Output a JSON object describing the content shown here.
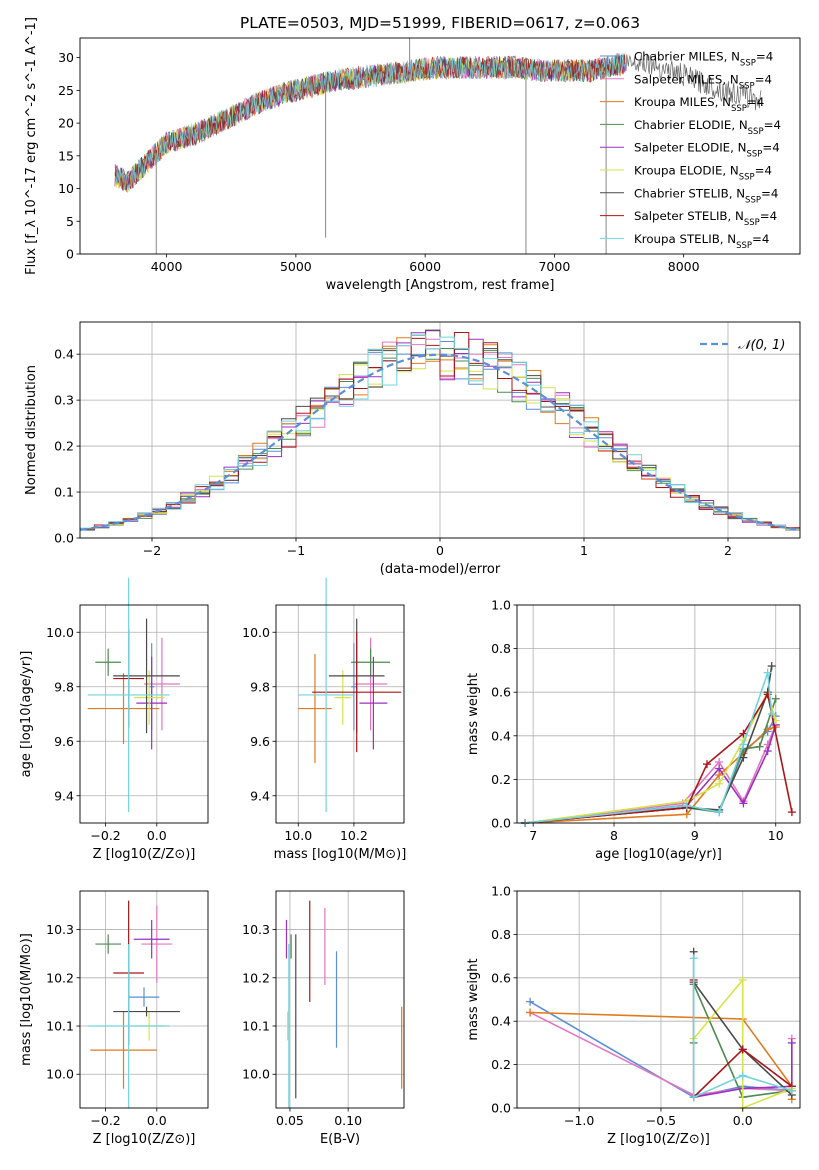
{
  "figure": {
    "title": "PLATE=0503, MJD=51999, FIBERID=0617, z=0.063"
  },
  "colors": {
    "Chabrier MILES": "#5B8FD6",
    "Salpeter MILES": "#E377C2",
    "Kroupa MILES": "#E07A1F",
    "Chabrier ELODIE": "#4E8A50",
    "Salpeter ELODIE": "#9A30C0",
    "Kroupa ELODIE": "#D7E348",
    "Chabrier STELIB": "#4A4A4A",
    "Salpeter STELIB": "#A8161A",
    "Kroupa STELIB": "#72D3DE",
    "model_order": [
      "Chabrier MILES",
      "Salpeter MILES",
      "Kroupa MILES",
      "Chabrier ELODIE",
      "Salpeter ELODIE",
      "Kroupa ELODIE",
      "Chabrier STELIB",
      "Salpeter STELIB",
      "Kroupa STELIB"
    ]
  },
  "chart_data": [
    {
      "id": "spectrum",
      "type": "line",
      "title": "PLATE=0503, MJD=51999, FIBERID=0617, z=0.063",
      "xlabel": "wavelength [Angstrom, rest frame]",
      "ylabel": "Flux [f_λ 10^-17 erg cm^-2 s^-1 A^-1]",
      "xlim": [
        3330,
        8900
      ],
      "ylim": [
        0,
        33
      ],
      "xticks": [
        4000,
        5000,
        6000,
        7000,
        8000
      ],
      "yticks": [
        0,
        5,
        10,
        15,
        20,
        25,
        30
      ],
      "grid": false,
      "legend": {
        "position": "right",
        "entries": [
          {
            "name": "Chabrier MILES",
            "suffix": "=4"
          },
          {
            "name": "Salpeter MILES",
            "suffix": "=4"
          },
          {
            "name": "Kroupa MILES",
            "suffix": "=4"
          },
          {
            "name": "Chabrier ELODIE",
            "suffix": "=4"
          },
          {
            "name": "Salpeter ELODIE",
            "suffix": "=4"
          },
          {
            "name": "Kroupa ELODIE",
            "suffix": "=4"
          },
          {
            "name": "Chabrier STELIB",
            "suffix": "=4"
          },
          {
            "name": "Salpeter STELIB",
            "suffix": "=4"
          },
          {
            "name": "Kroupa STELIB",
            "suffix": "=4"
          }
        ]
      },
      "data_continuum": {
        "x": [
          3600,
          3700,
          3800,
          3900,
          4000,
          4100,
          4300,
          4500,
          4700,
          4900,
          5100,
          5300,
          5500,
          5700,
          5900,
          6100,
          6300,
          6500,
          6700,
          6900,
          7100,
          7300,
          7500,
          7700,
          7900,
          8100,
          8300,
          8500,
          8600
        ],
        "y": [
          12,
          11,
          13,
          15,
          17,
          17.5,
          19,
          21,
          23,
          24.5,
          25.5,
          26.5,
          27,
          27.5,
          28,
          28.5,
          28.5,
          28.5,
          28.5,
          28,
          28,
          28,
          29,
          29.5,
          28,
          26.5,
          25,
          24,
          23.5
        ]
      },
      "data_spikes": [
        {
          "x": 3920,
          "y": 0
        },
        {
          "x": 5230,
          "y": 2.5
        },
        {
          "x": 5880,
          "y": 33
        },
        {
          "x": 6780,
          "y": 0
        },
        {
          "x": 7400,
          "y": 0
        }
      ]
    },
    {
      "id": "residual-histogram",
      "type": "histogram",
      "xlabel": "(data-model)/error",
      "ylabel": "Normed distribution",
      "xlim": [
        -2.5,
        2.5
      ],
      "ylim": [
        0,
        0.47
      ],
      "xticks": [
        -2,
        -1,
        0,
        1,
        2
      ],
      "yticks": [
        0.0,
        0.1,
        0.2,
        0.3,
        0.4
      ],
      "grid": true,
      "legend": {
        "position": "top-right",
        "entries": [
          {
            "name": "𝒩(0, 1)"
          }
        ]
      },
      "reference_curve": {
        "name": "𝒩(0, 1)",
        "mean": 0,
        "sigma": 1
      },
      "bins": [
        -2.5,
        -2.4,
        -2.3,
        -2.2,
        -2.1,
        -2.0,
        -1.9,
        -1.8,
        -1.7,
        -1.6,
        -1.5,
        -1.4,
        -1.3,
        -1.2,
        -1.1,
        -1.0,
        -0.9,
        -0.8,
        -0.7,
        -0.6,
        -0.5,
        -0.4,
        -0.3,
        -0.2,
        -0.1,
        0.0,
        0.1,
        0.2,
        0.3,
        0.4,
        0.5,
        0.6,
        0.7,
        0.8,
        0.9,
        1.0,
        1.1,
        1.2,
        1.3,
        1.4,
        1.5,
        1.6,
        1.7,
        1.8,
        1.9,
        2.0,
        2.1,
        2.2,
        2.3,
        2.4,
        2.5
      ]
    },
    {
      "id": "age-vs-metallicity",
      "type": "scatter",
      "xlabel": "Z [log10(Z/Z⊙)]",
      "ylabel": "age [log10(age/yr)]",
      "xlim": [
        -0.3,
        0.2
      ],
      "ylim": [
        9.3,
        10.1
      ],
      "xticks": [
        -0.2,
        0.0
      ],
      "yticks": [
        9.4,
        9.6,
        9.8,
        10.0
      ],
      "grid": true,
      "points": [
        {
          "model": "Chabrier MILES",
          "x": -0.02,
          "y": 9.8,
          "xerr": 0.01,
          "yerr": 0.16
        },
        {
          "model": "Salpeter MILES",
          "x": 0.02,
          "y": 9.81,
          "xerr": 0.07,
          "yerr": 0.17
        },
        {
          "model": "Kroupa MILES",
          "x": -0.13,
          "y": 9.72,
          "xerr": 0.14,
          "yerr": 0.13
        },
        {
          "model": "Chabrier ELODIE",
          "x": -0.19,
          "y": 9.89,
          "xerr": 0.05,
          "yerr": 0.05
        },
        {
          "model": "Salpeter ELODIE",
          "x": -0.02,
          "y": 9.74,
          "xerr": 0.06,
          "yerr": 0.17
        },
        {
          "model": "Kroupa ELODIE",
          "x": -0.03,
          "y": 9.76,
          "xerr": 0.06,
          "yerr": 0.1
        },
        {
          "model": "Chabrier STELIB",
          "x": -0.04,
          "y": 9.84,
          "xerr": 0.13,
          "yerr": 0.21
        },
        {
          "model": "Salpeter STELIB",
          "x": -0.11,
          "y": 9.83,
          "xerr": 0.06,
          "yerr": 0.18
        },
        {
          "model": "Kroupa STELIB",
          "x": -0.11,
          "y": 9.77,
          "xerr": 0.16,
          "yerr": 0.43
        }
      ]
    },
    {
      "id": "age-vs-mass",
      "type": "scatter",
      "xlabel": "mass [log10(M/M⊙)]",
      "ylabel": "",
      "xlim": [
        9.92,
        10.38
      ],
      "ylim": [
        9.3,
        10.1
      ],
      "xticks": [
        10.0,
        10.2
      ],
      "yticks": [
        9.4,
        9.6,
        9.8,
        10.0
      ],
      "grid": true,
      "points": [
        {
          "model": "Chabrier MILES",
          "x": 10.2,
          "y": 9.8,
          "xerr": 0.01,
          "yerr": 0.16
        },
        {
          "model": "Salpeter MILES",
          "x": 10.26,
          "y": 9.81,
          "xerr": 0.06,
          "yerr": 0.17
        },
        {
          "model": "Kroupa MILES",
          "x": 10.06,
          "y": 9.72,
          "xerr": 0.06,
          "yerr": 0.2
        },
        {
          "model": "Chabrier ELODIE",
          "x": 10.26,
          "y": 9.89,
          "xerr": 0.07,
          "yerr": 0.05
        },
        {
          "model": "Salpeter ELODIE",
          "x": 10.27,
          "y": 9.74,
          "xerr": 0.05,
          "yerr": 0.17
        },
        {
          "model": "Kroupa ELODIE",
          "x": 10.16,
          "y": 9.76,
          "xerr": 0.03,
          "yerr": 0.1
        },
        {
          "model": "Chabrier STELIB",
          "x": 10.21,
          "y": 9.84,
          "xerr": 0.1,
          "yerr": 0.21
        },
        {
          "model": "Salpeter STELIB",
          "x": 10.21,
          "y": 9.78,
          "xerr": 0.16,
          "yerr": 0.22
        },
        {
          "model": "Kroupa STELIB",
          "x": 10.1,
          "y": 9.77,
          "xerr": 0.1,
          "yerr": 0.43
        }
      ]
    },
    {
      "id": "mass-weight-vs-age",
      "type": "line",
      "xlabel": "age [log10(age/yr)]",
      "ylabel": "mass weight",
      "xlim": [
        6.8,
        10.3
      ],
      "ylim": [
        0,
        1
      ],
      "xticks": [
        7,
        8,
        9,
        10
      ],
      "yticks": [
        0.0,
        0.2,
        0.4,
        0.6,
        0.8,
        1.0
      ],
      "grid": true,
      "series": [
        {
          "model": "Chabrier MILES",
          "x": [
            6.9,
            8.85,
            9.3,
            9.6,
            9.9,
            10.0
          ],
          "y": [
            0.0,
            0.08,
            0.05,
            0.33,
            0.42,
            0.49
          ]
        },
        {
          "model": "Salpeter MILES",
          "x": [
            6.9,
            8.85,
            9.3,
            9.6,
            9.9,
            10.0
          ],
          "y": [
            0.0,
            0.09,
            0.28,
            0.1,
            0.36,
            0.45
          ]
        },
        {
          "model": "Kroupa MILES",
          "x": [
            6.9,
            8.9,
            9.3,
            9.6,
            9.9,
            10.0
          ],
          "y": [
            0.0,
            0.04,
            0.22,
            0.32,
            0.43,
            0.44
          ]
        },
        {
          "model": "Chabrier ELODIE",
          "x": [
            6.9,
            8.9,
            9.3,
            9.6,
            9.8,
            10.0
          ],
          "y": [
            0.0,
            0.07,
            0.05,
            0.34,
            0.35,
            0.57
          ]
        },
        {
          "model": "Salpeter ELODIE",
          "x": [
            6.9,
            8.9,
            9.3,
            9.6,
            9.9,
            10.0
          ],
          "y": [
            0.0,
            0.08,
            0.25,
            0.09,
            0.33,
            0.45
          ]
        },
        {
          "model": "Kroupa ELODIE",
          "x": [
            6.9,
            8.9,
            9.3,
            9.6,
            9.9,
            10.0
          ],
          "y": [
            0.0,
            0.1,
            0.18,
            0.38,
            0.6,
            0.47
          ]
        },
        {
          "model": "Chabrier STELIB",
          "x": [
            6.9,
            8.9,
            9.3,
            9.6,
            9.9,
            9.95
          ],
          "y": [
            0.0,
            0.07,
            0.06,
            0.3,
            0.6,
            0.72
          ]
        },
        {
          "model": "Salpeter STELIB",
          "x": [
            6.9,
            8.9,
            9.15,
            9.6,
            9.9,
            10.2
          ],
          "y": [
            0.0,
            0.07,
            0.27,
            0.41,
            0.59,
            0.05
          ]
        },
        {
          "model": "Kroupa STELIB",
          "x": [
            6.9,
            8.9,
            9.3,
            9.6,
            9.9,
            9.95
          ],
          "y": [
            0.0,
            0.08,
            0.05,
            0.36,
            0.69,
            0.5
          ]
        }
      ]
    },
    {
      "id": "mass-vs-metallicity",
      "type": "scatter",
      "xlabel": "Z [log10(Z/Z⊙)]",
      "ylabel": "mass [log10(M/M⊙)]",
      "xlim": [
        -0.3,
        0.2
      ],
      "ylim": [
        9.93,
        10.38
      ],
      "xticks": [
        -0.2,
        0.0
      ],
      "yticks": [
        10.0,
        10.1,
        10.2,
        10.3
      ],
      "grid": true,
      "points": [
        {
          "model": "Chabrier MILES",
          "x": -0.05,
          "y": 10.16,
          "xerr": 0.06,
          "yerr": 0.02
        },
        {
          "model": "Salpeter MILES",
          "x": 0.0,
          "y": 10.27,
          "xerr": 0.06,
          "yerr": 0.08
        },
        {
          "model": "Kroupa MILES",
          "x": -0.13,
          "y": 10.05,
          "xerr": 0.13,
          "yerr": 0.08
        },
        {
          "model": "Chabrier ELODIE",
          "x": -0.19,
          "y": 10.27,
          "xerr": 0.05,
          "yerr": 0.02
        },
        {
          "model": "Salpeter ELODIE",
          "x": -0.02,
          "y": 10.28,
          "xerr": 0.07,
          "yerr": 0.04
        },
        {
          "model": "Kroupa ELODIE",
          "x": -0.03,
          "y": 10.1,
          "xerr": 0.06,
          "yerr": 0.03
        },
        {
          "model": "Chabrier STELIB",
          "x": -0.04,
          "y": 10.13,
          "xerr": 0.13,
          "yerr": 0.01
        },
        {
          "model": "Salpeter STELIB",
          "x": -0.11,
          "y": 10.21,
          "xerr": 0.06,
          "yerr": 0.15
        },
        {
          "model": "Kroupa STELIB",
          "x": -0.11,
          "y": 10.1,
          "xerr": 0.16,
          "yerr": 0.17
        }
      ]
    },
    {
      "id": "mass-vs-extinction",
      "type": "scatter",
      "xlabel": "E(B-V)",
      "ylabel": "",
      "xlim": [
        0.038,
        0.148
      ],
      "ylim": [
        9.93,
        10.38
      ],
      "xticks": [
        0.05,
        0.1
      ],
      "xtick_labels": [
        "0.05",
        "0.10"
      ],
      "yticks": [
        10.0,
        10.1,
        10.2,
        10.3
      ],
      "grid": true,
      "points": [
        {
          "model": "Chabrier MILES",
          "x": 0.09,
          "y": 10.155,
          "yerr": 0.1
        },
        {
          "model": "Salpeter MILES",
          "x": 0.08,
          "y": 10.265,
          "yerr": 0.08
        },
        {
          "model": "Kroupa MILES",
          "x": 0.146,
          "y": 10.055,
          "yerr": 0.085
        },
        {
          "model": "Chabrier ELODIE",
          "x": 0.051,
          "y": 10.265,
          "yerr": 0.025
        },
        {
          "model": "Salpeter ELODIE",
          "x": 0.047,
          "y": 10.28,
          "yerr": 0.04
        },
        {
          "model": "Kroupa ELODIE",
          "x": 0.048,
          "y": 10.1,
          "yerr": 0.03
        },
        {
          "model": "Chabrier STELIB",
          "x": 0.055,
          "y": 10.12,
          "yerr": 0.17
        },
        {
          "model": "Salpeter STELIB",
          "x": 0.067,
          "y": 10.255,
          "yerr": 0.105
        },
        {
          "model": "Kroupa STELIB",
          "x": 0.049,
          "y": 10.1,
          "yerr": 0.17
        }
      ]
    },
    {
      "id": "mass-weight-vs-metallicity",
      "type": "line",
      "xlabel": "Z [log10(Z/Z⊙)]",
      "ylabel": "mass weight",
      "xlim": [
        -1.38,
        0.35
      ],
      "ylim": [
        0,
        1
      ],
      "xticks": [
        -1.0,
        -0.5,
        0.0
      ],
      "yticks": [
        0.0,
        0.2,
        0.4,
        0.6,
        0.8,
        1.0
      ],
      "grid": true,
      "series": [
        {
          "model": "Chabrier MILES",
          "x": [
            -1.3,
            -0.3,
            0.0,
            0.3
          ],
          "y": [
            0.49,
            0.05,
            0.1,
            0.08
          ]
        },
        {
          "model": "Salpeter MILES",
          "x": [
            -1.3,
            -0.3,
            0.0,
            0.3,
            0.3
          ],
          "y": [
            0.44,
            0.06,
            0.09,
            0.08,
            0.32
          ]
        },
        {
          "model": "Kroupa MILES",
          "x": [
            -1.3,
            0.0,
            0.3,
            0.3
          ],
          "y": [
            0.44,
            0.41,
            0.1,
            0.04
          ]
        },
        {
          "model": "Chabrier ELODIE",
          "x": [
            -0.3,
            -0.3,
            0.0,
            0.3
          ],
          "y": [
            0.3,
            0.57,
            0.05,
            0.08
          ]
        },
        {
          "model": "Salpeter ELODIE",
          "x": [
            -0.3,
            0.0,
            0.3,
            0.3
          ],
          "y": [
            0.05,
            0.09,
            0.1,
            0.3
          ]
        },
        {
          "model": "Kroupa ELODIE",
          "x": [
            -0.3,
            0.0,
            0.0,
            0.3
          ],
          "y": [
            0.32,
            0.59,
            0.0,
            0.09
          ]
        },
        {
          "model": "Chabrier STELIB",
          "x": [
            -0.3,
            -0.3,
            0.0,
            0.3
          ],
          "y": [
            0.72,
            0.58,
            0.27,
            0.06
          ]
        },
        {
          "model": "Salpeter STELIB",
          "x": [
            -0.3,
            -0.3,
            0.0,
            0.3
          ],
          "y": [
            0.59,
            0.05,
            0.27,
            0.1
          ]
        },
        {
          "model": "Kroupa STELIB",
          "x": [
            -0.3,
            -0.3,
            0.0,
            0.3
          ],
          "y": [
            0.69,
            0.05,
            0.15,
            0.08
          ]
        }
      ]
    }
  ]
}
